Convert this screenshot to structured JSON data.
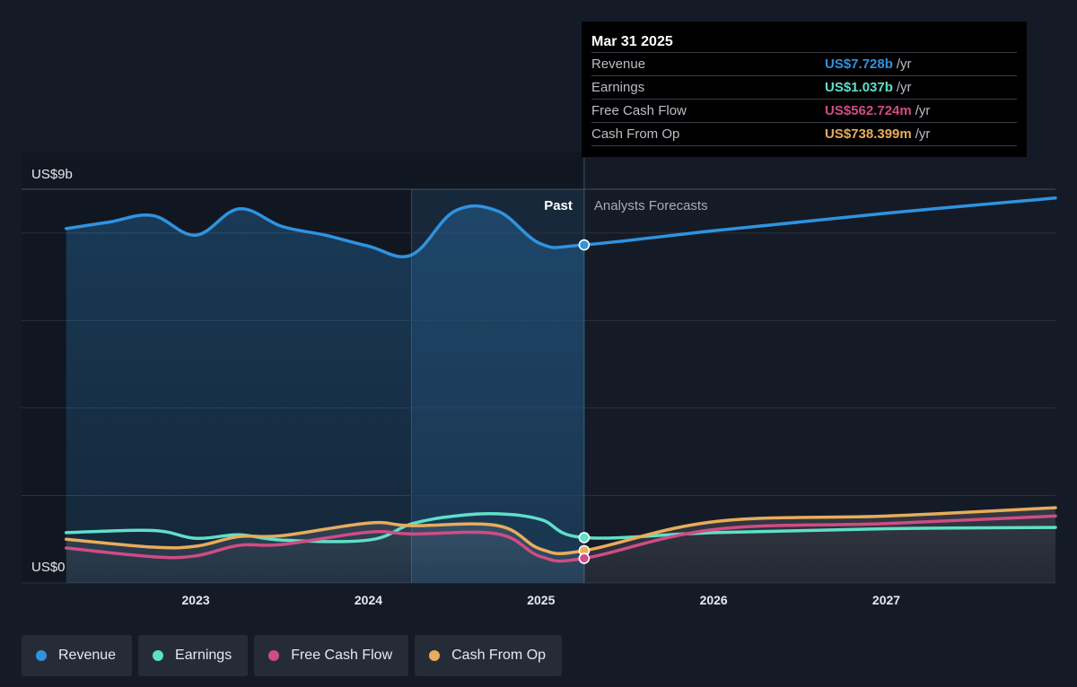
{
  "colors": {
    "revenue": "#2f93e0",
    "earnings": "#5fe0c8",
    "free_cash_flow": "#d04c84",
    "cash_from_op": "#e8ac5c"
  },
  "tooltip": {
    "date": "Mar 31 2025",
    "rows": [
      {
        "label": "Revenue",
        "value": "US$7.728b",
        "unit": "/yr"
      },
      {
        "label": "Earnings",
        "value": "US$1.037b",
        "unit": "/yr"
      },
      {
        "label": "Free Cash Flow",
        "value": "US$562.724m",
        "unit": "/yr"
      },
      {
        "label": "Cash From Op",
        "value": "US$738.399m",
        "unit": "/yr"
      }
    ]
  },
  "legend": {
    "revenue": "Revenue",
    "earnings": "Earnings",
    "free_cash_flow": "Free Cash Flow",
    "cash_from_op": "Cash From Op"
  },
  "chart_data": {
    "type": "line",
    "ylim": [
      0,
      9
    ],
    "y_tick_labels": {
      "top": "US$9b",
      "bottom": "US$0"
    },
    "y_gridlines": [
      0,
      2,
      4,
      6,
      8,
      9
    ],
    "x_ticks": [
      2023,
      2024,
      2025,
      2026,
      2027
    ],
    "xlim": [
      2022.23,
      2027.98
    ],
    "past_label": "Past",
    "forecast_label": "Analysts Forecasts",
    "divider_x": 2025.25,
    "highlight_range": [
      2024.25,
      2025.25
    ],
    "series": [
      {
        "name": "Revenue",
        "key": "revenue",
        "points": [
          [
            2022.25,
            8.1
          ],
          [
            2022.5,
            8.25
          ],
          [
            2022.75,
            8.4
          ],
          [
            2023.0,
            7.95
          ],
          [
            2023.25,
            8.55
          ],
          [
            2023.5,
            8.15
          ],
          [
            2023.75,
            7.95
          ],
          [
            2024.0,
            7.7
          ],
          [
            2024.25,
            7.5
          ],
          [
            2024.5,
            8.5
          ],
          [
            2024.75,
            8.5
          ],
          [
            2025.0,
            7.75
          ],
          [
            2025.25,
            7.728
          ],
          [
            2026.0,
            8.05
          ],
          [
            2027.0,
            8.45
          ],
          [
            2027.98,
            8.8
          ]
        ]
      },
      {
        "name": "Earnings",
        "key": "earnings",
        "points": [
          [
            2022.25,
            1.15
          ],
          [
            2022.75,
            1.2
          ],
          [
            2023.0,
            1.02
          ],
          [
            2023.25,
            1.1
          ],
          [
            2023.5,
            0.98
          ],
          [
            2024.0,
            0.98
          ],
          [
            2024.25,
            1.35
          ],
          [
            2024.5,
            1.53
          ],
          [
            2024.75,
            1.58
          ],
          [
            2025.0,
            1.45
          ],
          [
            2025.25,
            1.037
          ],
          [
            2026.0,
            1.15
          ],
          [
            2027.0,
            1.24
          ],
          [
            2027.98,
            1.27
          ]
        ]
      },
      {
        "name": "Free Cash Flow",
        "key": "free_cash_flow",
        "points": [
          [
            2022.25,
            0.8
          ],
          [
            2022.75,
            0.6
          ],
          [
            2023.0,
            0.62
          ],
          [
            2023.25,
            0.86
          ],
          [
            2023.5,
            0.88
          ],
          [
            2024.0,
            1.16
          ],
          [
            2024.25,
            1.12
          ],
          [
            2024.75,
            1.12
          ],
          [
            2025.0,
            0.6
          ],
          [
            2025.25,
            0.563
          ],
          [
            2026.0,
            1.22
          ],
          [
            2027.0,
            1.36
          ],
          [
            2027.98,
            1.53
          ]
        ]
      },
      {
        "name": "Cash From Op",
        "key": "cash_from_op",
        "points": [
          [
            2022.25,
            1.0
          ],
          [
            2022.75,
            0.82
          ],
          [
            2023.0,
            0.84
          ],
          [
            2023.25,
            1.06
          ],
          [
            2023.5,
            1.08
          ],
          [
            2024.0,
            1.37
          ],
          [
            2024.25,
            1.31
          ],
          [
            2024.75,
            1.31
          ],
          [
            2025.0,
            0.77
          ],
          [
            2025.25,
            0.738
          ],
          [
            2026.0,
            1.4
          ],
          [
            2027.0,
            1.53
          ],
          [
            2027.98,
            1.72
          ]
        ]
      }
    ]
  }
}
